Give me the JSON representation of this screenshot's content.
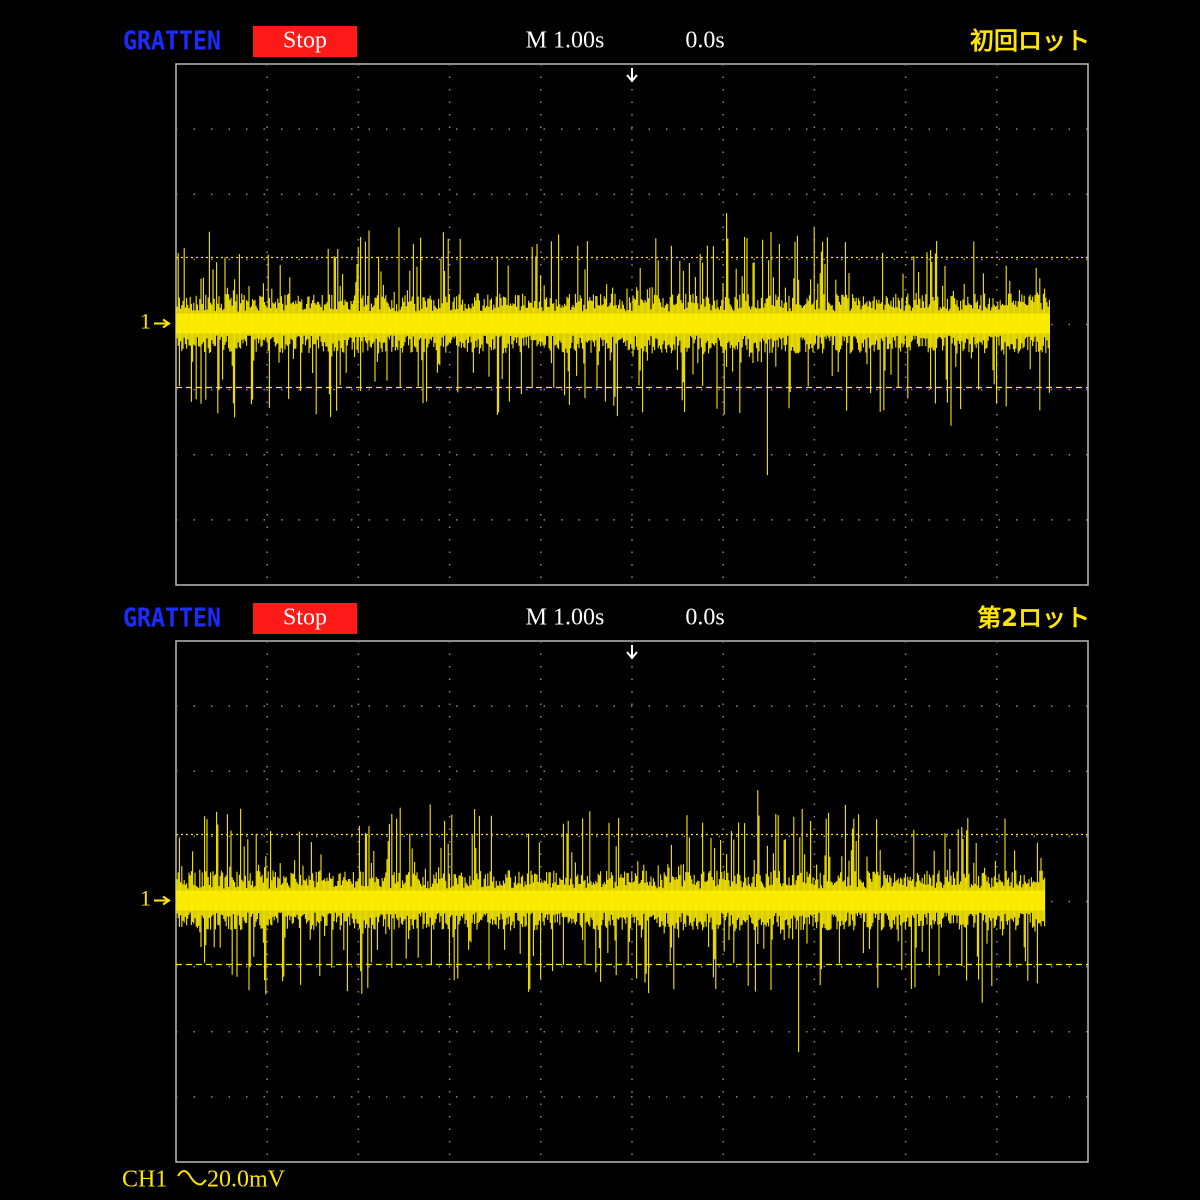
{
  "screens": [
    {
      "logo": "GRATTEN",
      "status": "Stop",
      "timebase": "M 1.00s",
      "position": "0.0s",
      "label": "初回ロット",
      "channel_marker": "1"
    },
    {
      "logo": "GRATTEN",
      "status": "Stop",
      "timebase": "M 1.00s",
      "position": "0.0s",
      "label": "第2ロット",
      "channel_marker": "1"
    }
  ],
  "footer": {
    "channel": "CH1",
    "scale": "20.0mV"
  }
}
